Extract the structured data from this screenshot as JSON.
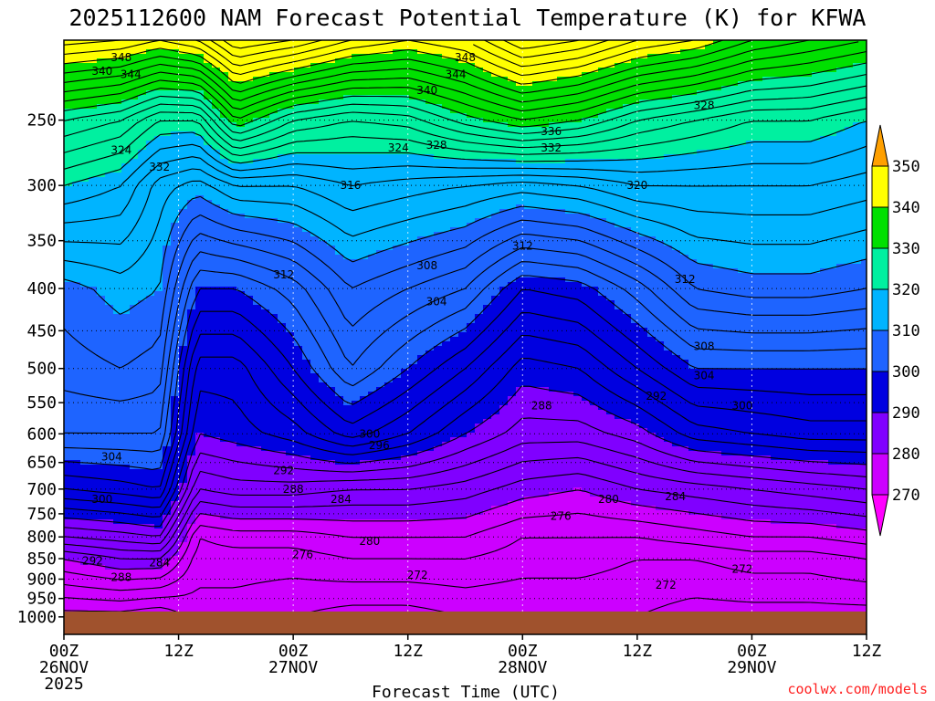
{
  "chart_data": {
    "type": "heatmap",
    "title": "2025112600 NAM Forecast Potential Temperature (K) for KFWA",
    "xlabel": "Forecast Time (UTC)",
    "ylabel": "",
    "x_ticks": [
      {
        "hour": 0,
        "lines": [
          "00Z",
          "26NOV",
          "2025"
        ]
      },
      {
        "hour": 12,
        "lines": [
          "12Z"
        ]
      },
      {
        "hour": 24,
        "lines": [
          "00Z",
          "27NOV"
        ]
      },
      {
        "hour": 36,
        "lines": [
          "12Z"
        ]
      },
      {
        "hour": 48,
        "lines": [
          "00Z",
          "28NOV"
        ]
      },
      {
        "hour": 60,
        "lines": [
          "12Z"
        ]
      },
      {
        "hour": 72,
        "lines": [
          "00Z",
          "29NOV"
        ]
      },
      {
        "hour": 84,
        "lines": [
          "12Z"
        ]
      }
    ],
    "x_range_hours": [
      0,
      84
    ],
    "y_ticks": [
      250,
      300,
      350,
      400,
      450,
      500,
      550,
      600,
      650,
      700,
      750,
      800,
      850,
      900,
      950,
      1000
    ],
    "y_range_hpa": [
      200,
      1050
    ],
    "surface_pressure_hpa": 985,
    "colorbar": {
      "levels": [
        270,
        280,
        290,
        300,
        310,
        320,
        330,
        340,
        350
      ],
      "colors": [
        "#ff00ff",
        "#cc00ff",
        "#8000ff",
        "#0000e0",
        "#1e64ff",
        "#00b4ff",
        "#00f0a0",
        "#00e000",
        "#ffff00",
        "#ffa000"
      ]
    },
    "profiles": [
      {
        "hour": 0,
        "p": [
          1000,
          850,
          800,
          700,
          600,
          500,
          400,
          300,
          250,
          200
        ],
        "theta": [
          271,
          280,
          286,
          296,
          304,
          307,
          309,
          320,
          328,
          345
        ]
      },
      {
        "hour": 6,
        "p": [
          1000,
          850,
          800,
          700,
          600,
          500,
          400,
          300,
          250,
          200
        ],
        "theta": [
          271,
          282,
          287,
          297,
          304,
          308,
          311,
          318,
          326,
          344
        ]
      },
      {
        "hour": 10,
        "p": [
          1000,
          850,
          800,
          700,
          600,
          500,
          400,
          300,
          250,
          200
        ],
        "theta": [
          270,
          282,
          288,
          298,
          304,
          307,
          310,
          313,
          322,
          342
        ]
      },
      {
        "hour": 14,
        "p": [
          1000,
          850,
          800,
          700,
          600,
          500,
          400,
          300,
          250,
          200
        ],
        "theta": [
          273,
          275,
          276,
          284,
          290,
          293,
          300,
          311,
          322,
          344
        ]
      },
      {
        "hour": 18,
        "p": [
          1000,
          850,
          800,
          700,
          600,
          500,
          400,
          300,
          250,
          200
        ],
        "theta": [
          273,
          275,
          277,
          285,
          291,
          293,
          300,
          314,
          332,
          350
        ]
      },
      {
        "hour": 24,
        "p": [
          1000,
          850,
          800,
          700,
          600,
          500,
          400,
          300,
          250,
          200
        ],
        "theta": [
          272,
          275,
          277,
          285,
          293,
          298,
          303,
          314,
          326,
          348
        ]
      },
      {
        "hour": 30,
        "p": [
          1000,
          850,
          800,
          700,
          600,
          500,
          400,
          300,
          250,
          200
        ],
        "theta": [
          271,
          276,
          278,
          284,
          297,
          304,
          308,
          316,
          324,
          344
        ]
      },
      {
        "hour": 36,
        "p": [
          1000,
          850,
          800,
          700,
          600,
          500,
          400,
          300,
          250,
          200
        ],
        "theta": [
          271,
          276,
          278,
          284,
          294,
          300,
          306,
          315,
          325,
          342
        ]
      },
      {
        "hour": 42,
        "p": [
          1000,
          850,
          800,
          700,
          600,
          500,
          400,
          300,
          250,
          200
        ],
        "theta": [
          272,
          276,
          278,
          283,
          290,
          296,
          304,
          314,
          329,
          344
        ]
      },
      {
        "hour": 48,
        "p": [
          1000,
          850,
          800,
          700,
          600,
          500,
          400,
          300,
          250,
          200
        ],
        "theta": [
          272,
          275,
          276,
          281,
          287,
          291,
          298,
          313,
          332,
          350
        ]
      },
      {
        "hour": 54,
        "p": [
          1000,
          850,
          800,
          700,
          600,
          500,
          400,
          300,
          250,
          200
        ],
        "theta": [
          272,
          275,
          276,
          280,
          287,
          292,
          299,
          314,
          330,
          348
        ]
      },
      {
        "hour": 60,
        "p": [
          1000,
          850,
          800,
          700,
          600,
          500,
          400,
          300,
          250,
          200
        ],
        "theta": [
          272,
          274,
          276,
          282,
          289,
          296,
          303,
          316,
          326,
          344
        ]
      },
      {
        "hour": 66,
        "p": [
          1000,
          850,
          800,
          700,
          600,
          500,
          400,
          300,
          250,
          200
        ],
        "theta": [
          271,
          274,
          277,
          283,
          293,
          300,
          308,
          316,
          324,
          342
        ]
      },
      {
        "hour": 72,
        "p": [
          1000,
          850,
          800,
          700,
          600,
          500,
          400,
          300,
          250,
          200
        ],
        "theta": [
          271,
          275,
          278,
          284,
          294,
          300,
          309,
          316,
          322,
          338
        ]
      },
      {
        "hour": 78,
        "p": [
          1000,
          850,
          800,
          700,
          600,
          500,
          400,
          300,
          250,
          200
        ],
        "theta": [
          271,
          275,
          278,
          285,
          295,
          300,
          309,
          316,
          322,
          336
        ]
      },
      {
        "hour": 84,
        "p": [
          1000,
          850,
          800,
          700,
          600,
          500,
          400,
          300,
          250,
          200
        ],
        "theta": [
          271,
          276,
          279,
          286,
          295,
          300,
          308,
          315,
          320,
          334
        ]
      }
    ],
    "contour_labels": [
      {
        "hour": 6,
        "p": 210,
        "text": "348"
      },
      {
        "hour": 4,
        "p": 218,
        "text": "340"
      },
      {
        "hour": 7,
        "p": 220,
        "text": "344"
      },
      {
        "hour": 6,
        "p": 272,
        "text": "324"
      },
      {
        "hour": 10,
        "p": 285,
        "text": "332"
      },
      {
        "hour": 23,
        "p": 385,
        "text": "312"
      },
      {
        "hour": 30,
        "p": 300,
        "text": "316"
      },
      {
        "hour": 35,
        "p": 270,
        "text": "324"
      },
      {
        "hour": 39,
        "p": 268,
        "text": "328"
      },
      {
        "hour": 38,
        "p": 230,
        "text": "340"
      },
      {
        "hour": 41,
        "p": 220,
        "text": "344"
      },
      {
        "hour": 42,
        "p": 210,
        "text": "348"
      },
      {
        "hour": 38,
        "p": 375,
        "text": "308"
      },
      {
        "hour": 39,
        "p": 415,
        "text": "304"
      },
      {
        "hour": 48,
        "p": 355,
        "text": "312"
      },
      {
        "hour": 51,
        "p": 258,
        "text": "336"
      },
      {
        "hour": 51,
        "p": 270,
        "text": "332"
      },
      {
        "hour": 60,
        "p": 300,
        "text": "320"
      },
      {
        "hour": 67,
        "p": 240,
        "text": "328"
      },
      {
        "hour": 65,
        "p": 390,
        "text": "312"
      },
      {
        "hour": 67,
        "p": 470,
        "text": "308"
      },
      {
        "hour": 67,
        "p": 510,
        "text": "304"
      },
      {
        "hour": 71,
        "p": 555,
        "text": "300"
      },
      {
        "hour": 62,
        "p": 540,
        "text": "292"
      },
      {
        "hour": 50,
        "p": 555,
        "text": "288"
      },
      {
        "hour": 32,
        "p": 600,
        "text": "300"
      },
      {
        "hour": 33,
        "p": 620,
        "text": "296"
      },
      {
        "hour": 23,
        "p": 665,
        "text": "292"
      },
      {
        "hour": 24,
        "p": 700,
        "text": "288"
      },
      {
        "hour": 29,
        "p": 720,
        "text": "284"
      },
      {
        "hour": 5,
        "p": 640,
        "text": "304"
      },
      {
        "hour": 4,
        "p": 720,
        "text": "300"
      },
      {
        "hour": 3,
        "p": 855,
        "text": "292"
      },
      {
        "hour": 6,
        "p": 895,
        "text": "288"
      },
      {
        "hour": 10,
        "p": 860,
        "text": "284"
      },
      {
        "hour": 25,
        "p": 840,
        "text": "276"
      },
      {
        "hour": 32,
        "p": 810,
        "text": "280"
      },
      {
        "hour": 52,
        "p": 755,
        "text": "276"
      },
      {
        "hour": 57,
        "p": 720,
        "text": "280"
      },
      {
        "hour": 64,
        "p": 715,
        "text": "284"
      },
      {
        "hour": 37,
        "p": 890,
        "text": "272"
      },
      {
        "hour": 63,
        "p": 915,
        "text": "272"
      },
      {
        "hour": 71,
        "p": 875,
        "text": "272"
      }
    ],
    "credit": "coolwx.com/models"
  }
}
